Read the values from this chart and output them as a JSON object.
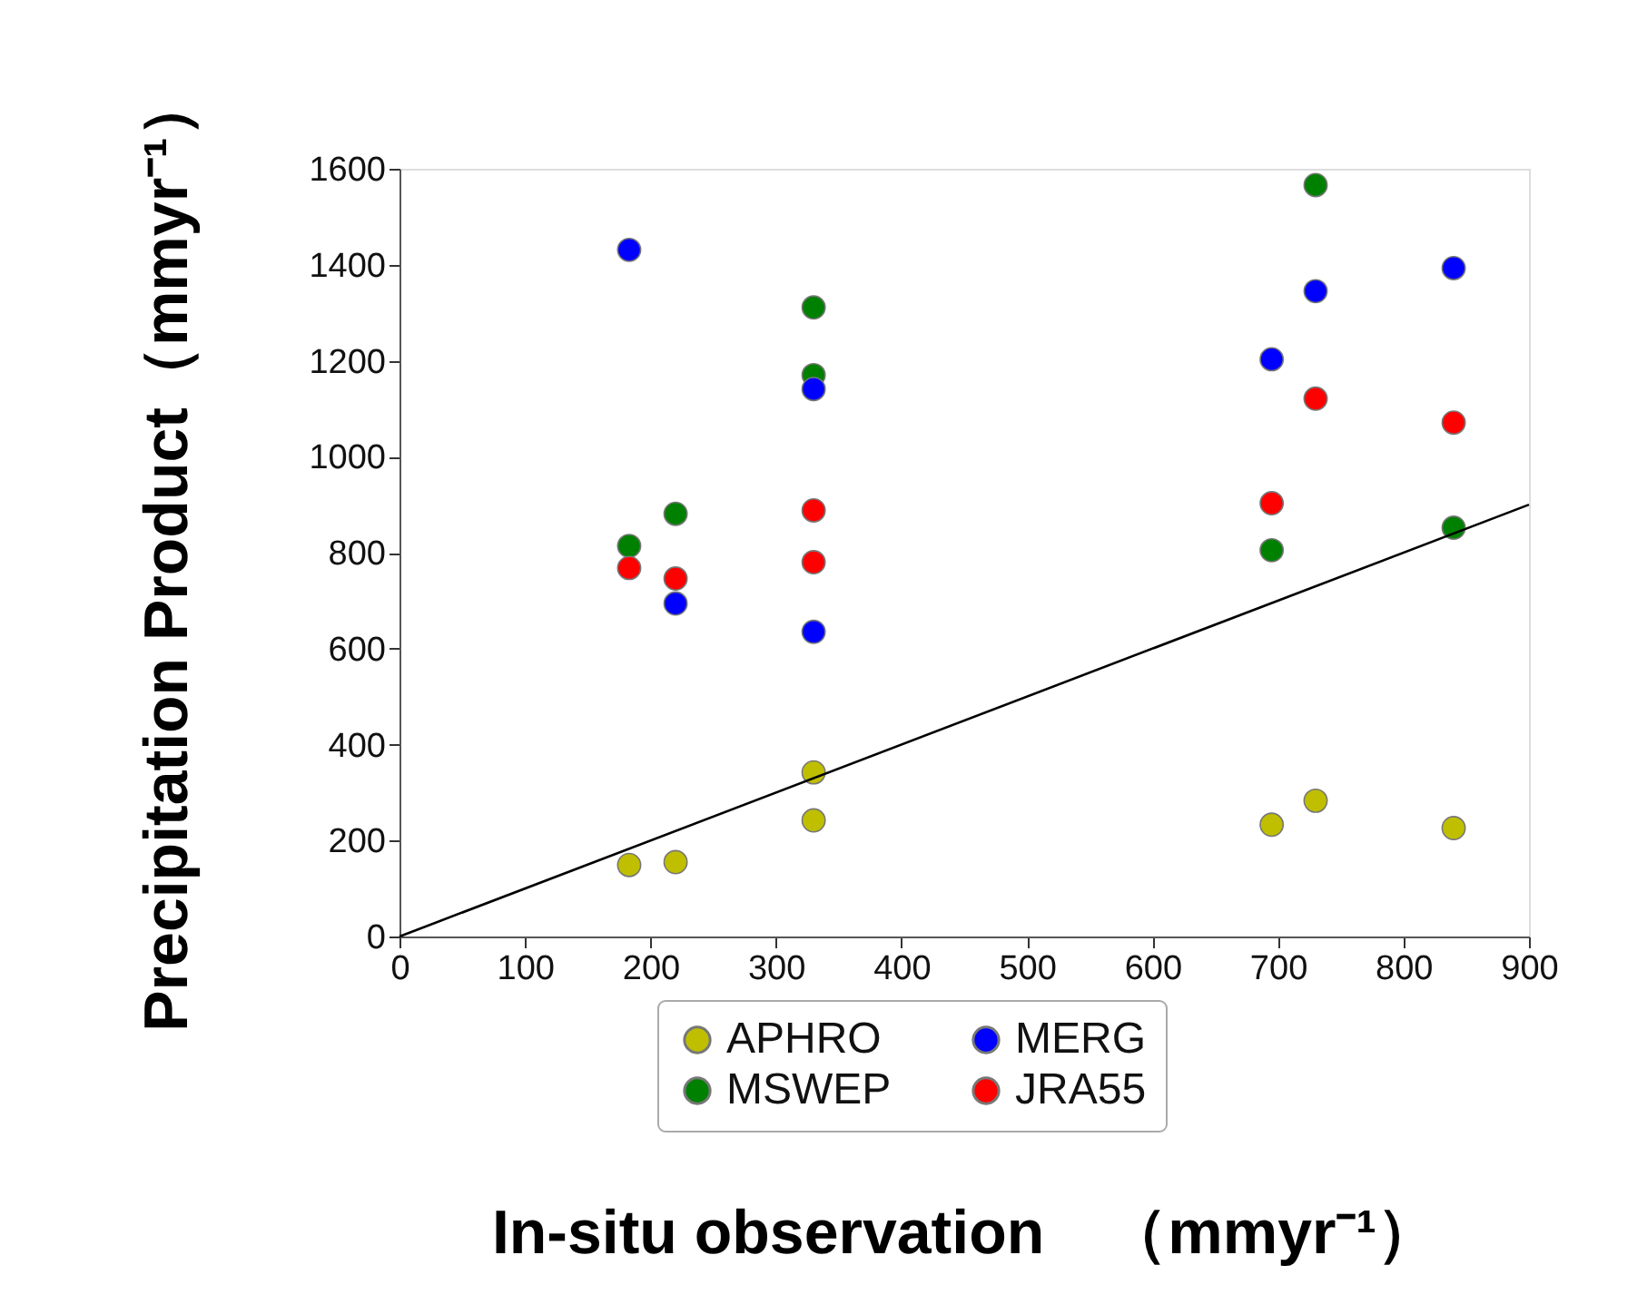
{
  "chart_data": {
    "type": "scatter",
    "xlabel": "In-situ observation　（mmyr⁻¹）",
    "ylabel": "Precipitation Product（mmyr⁻¹）",
    "xlim": [
      0,
      900
    ],
    "ylim": [
      0,
      1600
    ],
    "xticks": [
      0,
      100,
      200,
      300,
      400,
      500,
      600,
      700,
      800,
      900
    ],
    "yticks": [
      0,
      200,
      400,
      600,
      800,
      1000,
      1200,
      1400,
      1600
    ],
    "grid": false,
    "legend": "bottom",
    "marker": "circle",
    "series": [
      {
        "name": "APHRO",
        "color": "#bfbf00",
        "x": [
          183,
          220,
          330,
          330,
          695,
          730,
          840
        ],
        "values": [
          149,
          155,
          342,
          242,
          233,
          283,
          226
        ]
      },
      {
        "name": "MSWEP",
        "color": "#008000",
        "x": [
          183,
          220,
          330,
          330,
          695,
          730,
          840
        ],
        "values": [
          814,
          881,
          1311,
          1170,
          805,
          1566,
          852
        ]
      },
      {
        "name": "MERG",
        "color": "#0000ff",
        "x": [
          183,
          220,
          330,
          330,
          695,
          730,
          840
        ],
        "values": [
          1431,
          694,
          1141,
          635,
          1203,
          1345,
          1393
        ]
      },
      {
        "name": "JRA55",
        "color": "#ff0000",
        "x": [
          183,
          220,
          330,
          330,
          695,
          730,
          840
        ],
        "values": [
          768,
          746,
          888,
          780,
          903,
          1121,
          1071
        ]
      },
      {
        "type": "line",
        "color": "#000000",
        "marker": "none",
        "x": [
          0,
          900
        ],
        "values": [
          0,
          900
        ]
      }
    ]
  }
}
